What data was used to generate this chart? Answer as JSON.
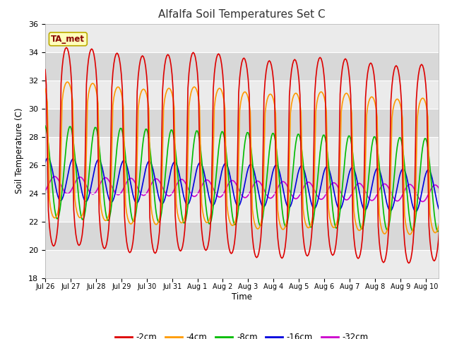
{
  "title": "Alfalfa Soil Temperatures Set C",
  "xlabel": "Time",
  "ylabel": "Soil Temperature (C)",
  "ylim": [
    18,
    36
  ],
  "yticks": [
    18,
    20,
    22,
    24,
    26,
    28,
    30,
    32,
    34,
    36
  ],
  "background_color": "#dcdcdc",
  "plot_bg_color": "#dcdcdc",
  "fig_bg_color": "#ffffff",
  "grid_color": "#ffffff",
  "colors": {
    "-2cm": "#dd0000",
    "-4cm": "#ff9900",
    "-8cm": "#00bb00",
    "-16cm": "#0000dd",
    "-32cm": "#cc00cc"
  },
  "legend_labels": [
    "-2cm",
    "-4cm",
    "-8cm",
    "-16cm",
    "-32cm"
  ],
  "annotation_text": "TA_met",
  "annotation_bg": "#ffffbb",
  "annotation_border": "#bbaa00",
  "tick_labels": [
    "Jul 26",
    "Jul 27",
    "Jul 28",
    "Jul 29",
    "Jul 30",
    "Jul 31",
    "Aug 1",
    "Aug 2",
    "Aug 3",
    "Aug 4",
    "Aug 5",
    "Aug 6",
    "Aug 7",
    "Aug 8",
    "Aug 9",
    "Aug 10"
  ],
  "n_days": 16
}
